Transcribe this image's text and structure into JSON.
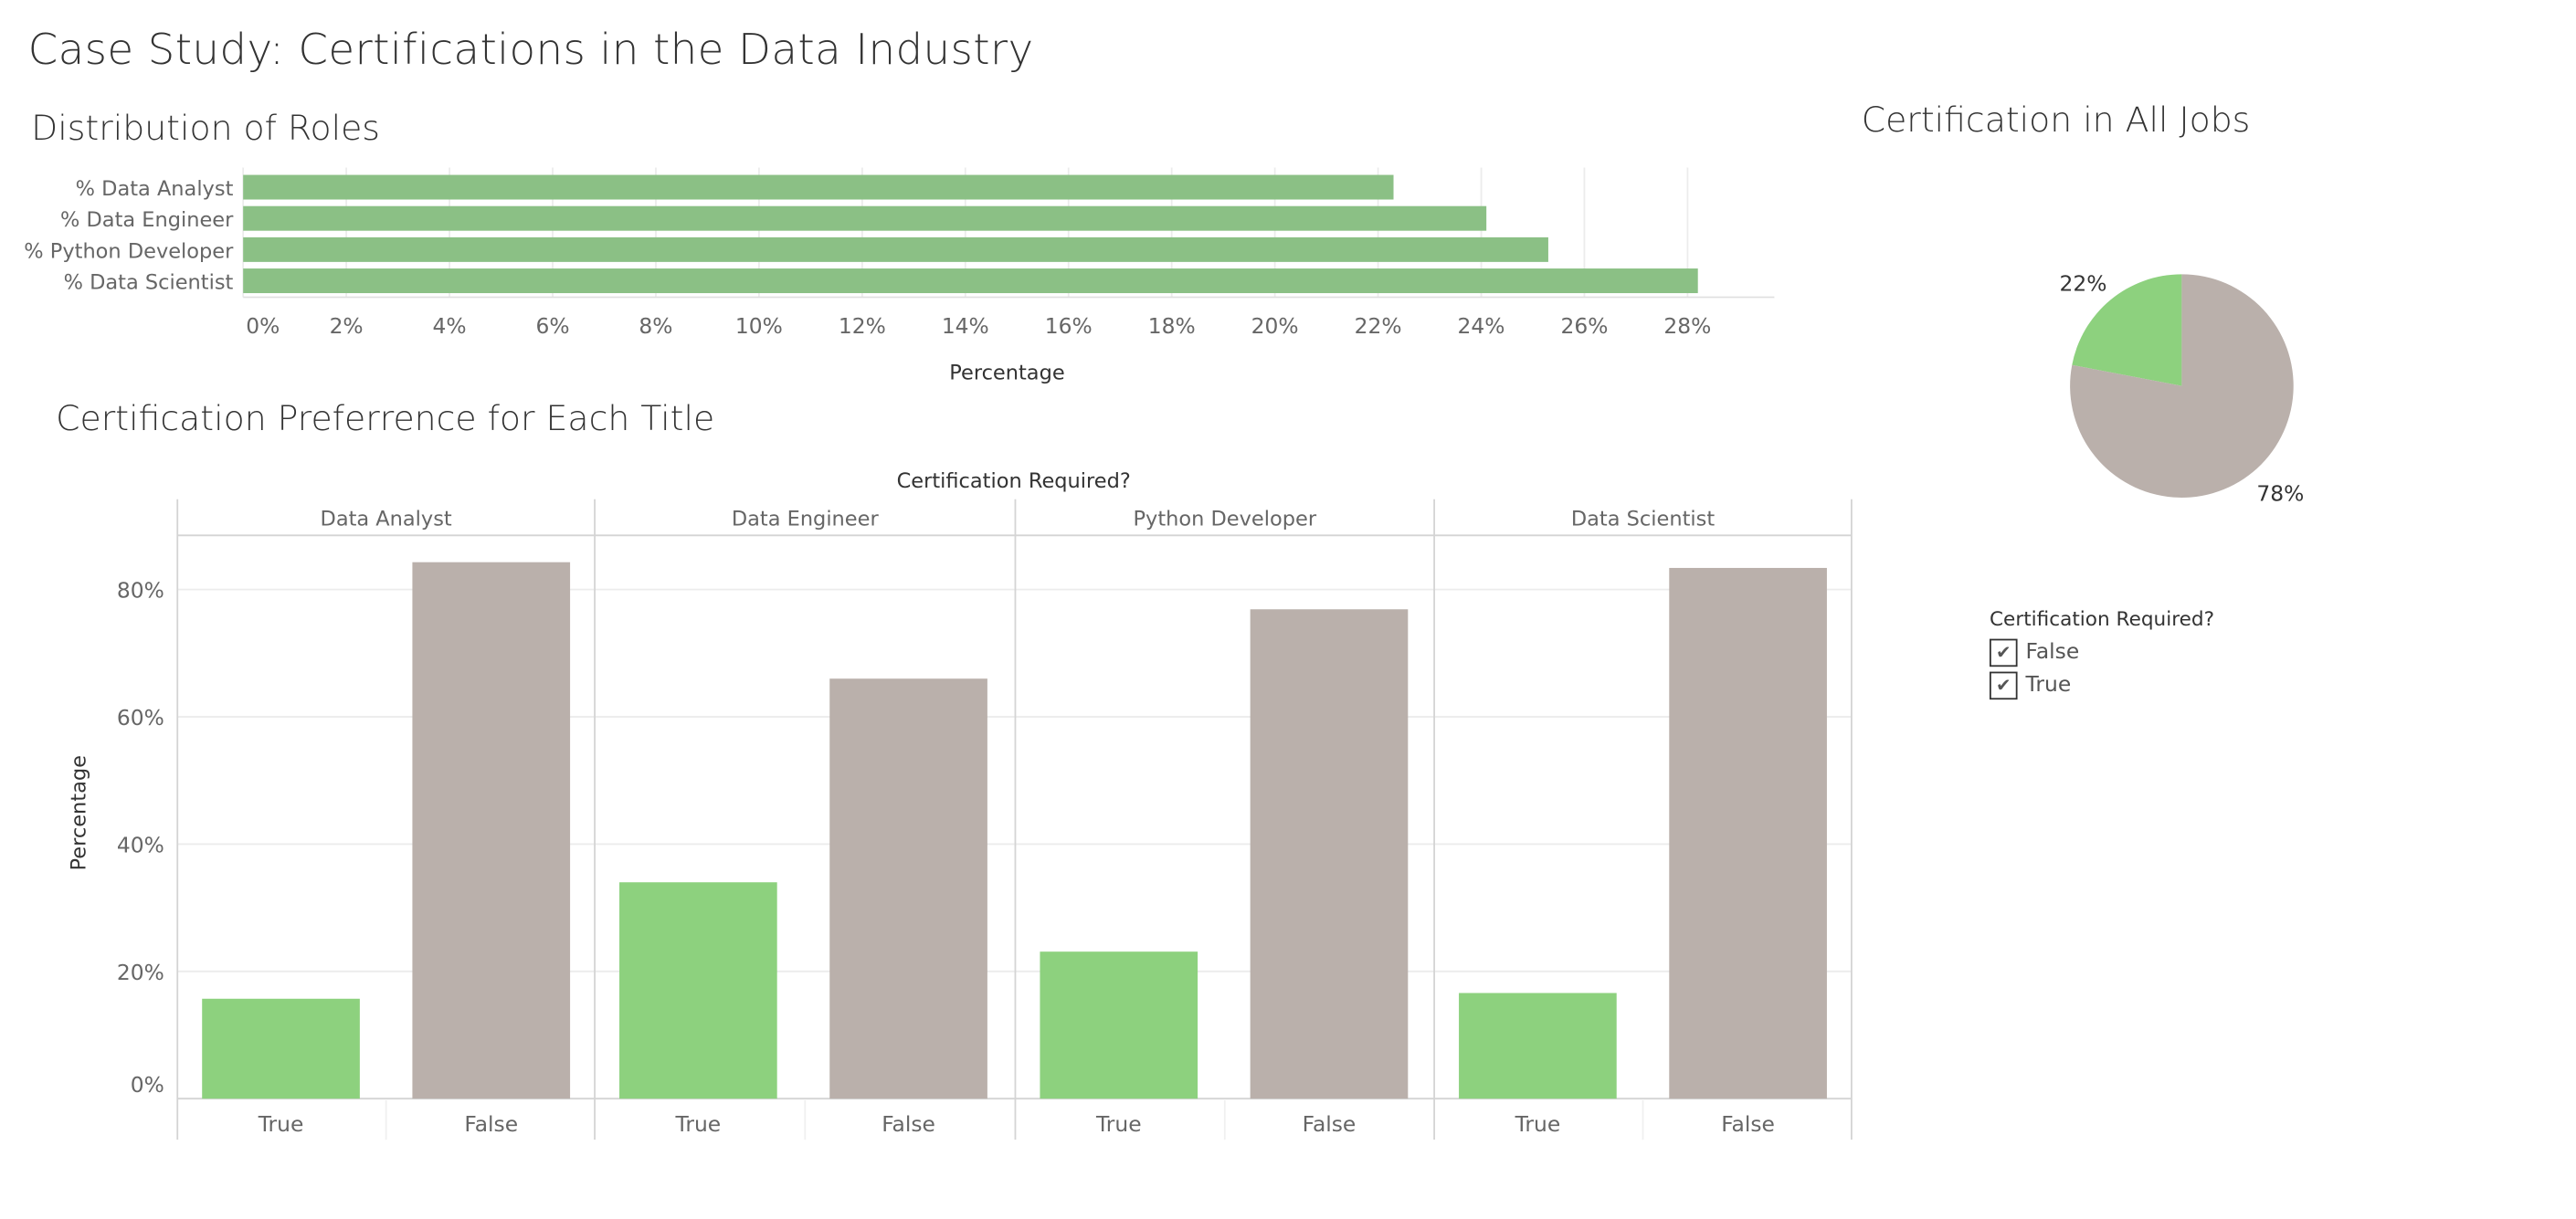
{
  "page_title": "Case Study: Certifications in the Data Industry",
  "colors": {
    "bar_top": "#8bc085",
    "true": "#8dd17e",
    "false": "#bab0ab",
    "grid": "#ececec",
    "axis": "#d4d4d4",
    "text": "#666666"
  },
  "chart_data": [
    {
      "type": "bar",
      "orientation": "horizontal",
      "title": "Distribution of Roles",
      "categories": [
        "% Data Analyst",
        "% Data Engineer",
        "% Python Developer",
        "% Data Scientist"
      ],
      "values": [
        22.3,
        24.1,
        25.3,
        28.2
      ],
      "xlabel": "Percentage",
      "xlim": [
        0,
        29.5
      ],
      "xticks": [
        "0%",
        "2%",
        "4%",
        "6%",
        "8%",
        "10%",
        "12%",
        "14%",
        "16%",
        "18%",
        "20%",
        "22%",
        "24%",
        "26%",
        "28%"
      ],
      "grid": true
    },
    {
      "type": "bar",
      "title": "Certification Preferrence for Each Title",
      "column_header": "Certification Required?",
      "panels": [
        "Data Analyst",
        "Data Engineer",
        "Python Developer",
        "Data Scientist"
      ],
      "categories": [
        "True",
        "False"
      ],
      "values": [
        [
          15.7,
          84.3
        ],
        [
          34.0,
          66.0
        ],
        [
          23.1,
          76.9
        ],
        [
          16.6,
          83.4
        ]
      ],
      "ylabel": "Percentage",
      "ylim": [
        0,
        88
      ],
      "yticks": [
        "0%",
        "20%",
        "40%",
        "60%",
        "80%"
      ],
      "grid": true
    },
    {
      "type": "pie",
      "title": "Certification in All Jobs",
      "labels": [
        "True",
        "False"
      ],
      "values": [
        22,
        78
      ],
      "data_labels": [
        "22%",
        "78%"
      ]
    }
  ],
  "legend": {
    "title": "Certification Required?",
    "items": [
      {
        "label": "False",
        "checked": true
      },
      {
        "label": "True",
        "checked": true
      }
    ]
  }
}
